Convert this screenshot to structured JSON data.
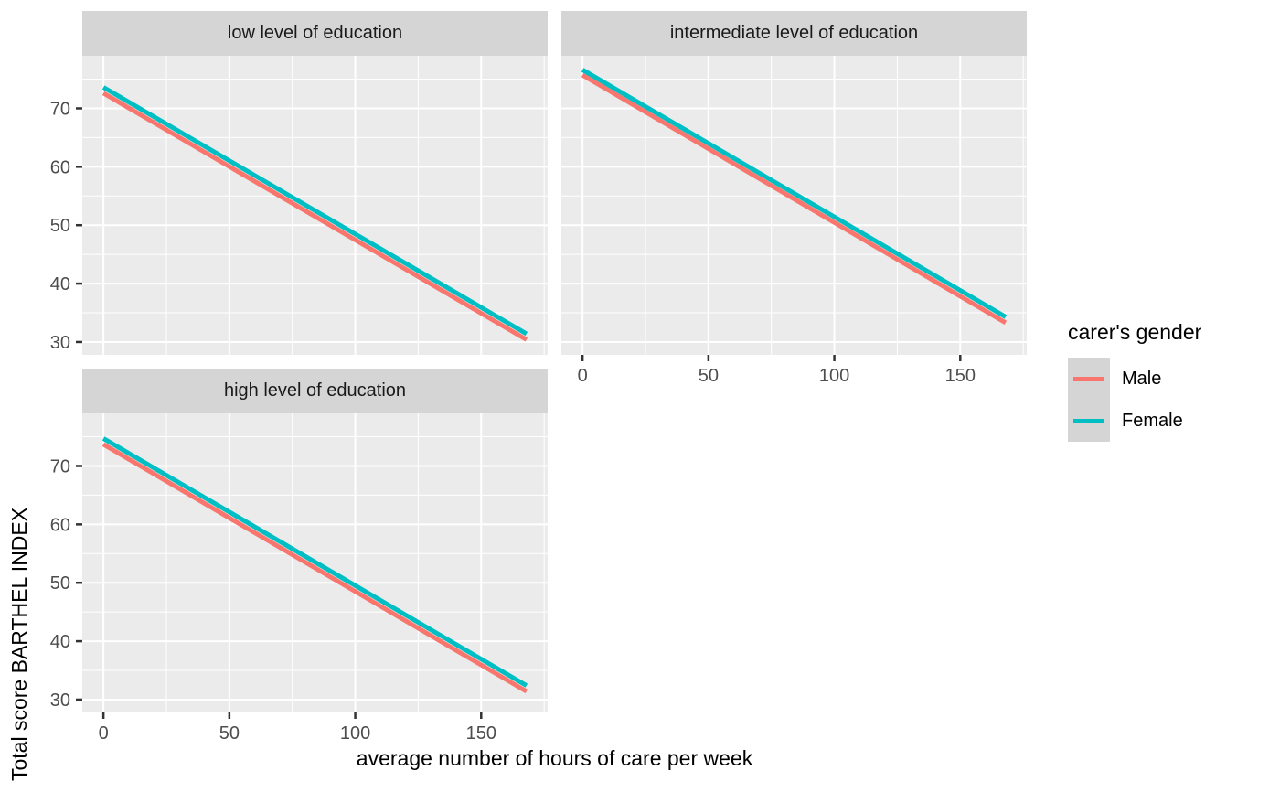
{
  "figure": {
    "background": "#FFFFFF",
    "panel_bg": "#EBEBEB",
    "strip_bg": "#D5D5D5",
    "grid_color": "#FFFFFF",
    "tick_mark_color": "#333333",
    "tick_label_color": "#4D4D4D"
  },
  "axes": {
    "x_title": "average number of hours of care per week",
    "y_title": "Total score BARTHEL INDEX",
    "x_ticks": [
      0,
      50,
      100,
      150
    ],
    "y_ticks": [
      70,
      60,
      50,
      40,
      30
    ],
    "x_minor": [
      25,
      75,
      125,
      175
    ],
    "y_minor": [
      35,
      45,
      55,
      65,
      75
    ],
    "x_range": [
      -8.4,
      176.4
    ],
    "y_range": [
      27.8,
      79.0
    ]
  },
  "legend": {
    "title": "carer's gender",
    "key_bg": "#D5D5D5",
    "items": [
      {
        "label": "Male",
        "color": "#F8766D"
      },
      {
        "label": "Female",
        "color": "#00BFC4"
      }
    ]
  },
  "chart_data": {
    "type": "line",
    "xlabel": "average number of hours of care per week",
    "ylabel": "Total score BARTHEL INDEX",
    "xlim": [
      0,
      168
    ],
    "ylim": [
      27.8,
      79.0
    ],
    "grid": "on",
    "legend_position": "right",
    "facets": [
      {
        "label": "low level of education",
        "series": [
          {
            "name": "Male",
            "color": "#F8766D",
            "x": [
              0,
              168
            ],
            "y": [
              72.6,
              30.4
            ]
          },
          {
            "name": "Female",
            "color": "#00BFC4",
            "x": [
              0,
              168
            ],
            "y": [
              73.6,
              31.4
            ]
          }
        ]
      },
      {
        "label": "intermediate level of education",
        "series": [
          {
            "name": "Male",
            "color": "#F8766D",
            "x": [
              0,
              168
            ],
            "y": [
              75.7,
              33.3
            ]
          },
          {
            "name": "Female",
            "color": "#00BFC4",
            "x": [
              0,
              168
            ],
            "y": [
              76.6,
              34.3
            ]
          }
        ]
      },
      {
        "label": "high level of education",
        "series": [
          {
            "name": "Male",
            "color": "#F8766D",
            "x": [
              0,
              168
            ],
            "y": [
              73.7,
              31.4
            ]
          },
          {
            "name": "Female",
            "color": "#00BFC4",
            "x": [
              0,
              168
            ],
            "y": [
              74.7,
              32.4
            ]
          }
        ]
      }
    ]
  }
}
